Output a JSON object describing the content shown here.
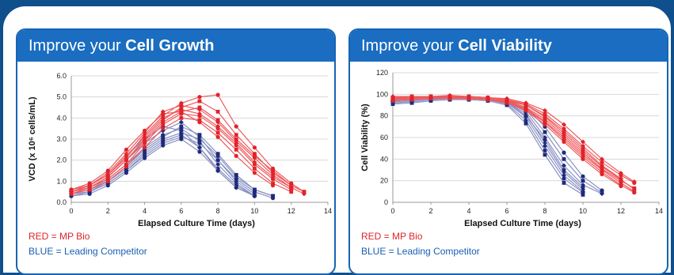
{
  "panels": [
    {
      "title_light": "Improve your ",
      "title_bold": "Cell Growth",
      "legend_red": "RED = MP Bio",
      "legend_blue": "BLUE = Leading Competitor"
    },
    {
      "title_light": "Improve your ",
      "title_bold": "Cell Viability",
      "legend_red": "RED = MP Bio",
      "legend_blue": "BLUE = Leading Competitor"
    }
  ],
  "colors": {
    "red": "#e0242a",
    "blue": "#1f2a7a",
    "frame": "#0f4f8c",
    "header": "#1a6dc0"
  },
  "chart_data": [
    {
      "type": "line",
      "xlabel": "Elapsed Culture Time (days)",
      "ylabel": "VCD (x 10⁶ cells/mL)",
      "xlim": [
        0,
        14
      ],
      "ylim": [
        0,
        6
      ],
      "xticks": [
        0,
        2,
        4,
        6,
        8,
        10,
        12,
        14
      ],
      "yticks": [
        "0.0",
        "1.0",
        "2.0",
        "3.0",
        "4.0",
        "5.0",
        "6.0"
      ],
      "grid": true,
      "series": [
        {
          "group": "red",
          "x": [
            0,
            1,
            2,
            3,
            4,
            5,
            6,
            7,
            8,
            9,
            10,
            11,
            12,
            12.7
          ],
          "y": [
            0.6,
            0.8,
            1.3,
            2.1,
            3.2,
            4.1,
            4.7,
            5.0,
            5.1,
            3.6,
            2.6,
            1.6,
            0.9,
            0.5
          ]
        },
        {
          "group": "red",
          "x": [
            0,
            1,
            2,
            3,
            4,
            5,
            6,
            7,
            8,
            9,
            10,
            11,
            12,
            12.7
          ],
          "y": [
            0.5,
            0.7,
            1.2,
            2.0,
            3.0,
            3.9,
            4.5,
            4.8,
            4.3,
            3.2,
            2.3,
            1.4,
            0.8,
            0.5
          ]
        },
        {
          "group": "red",
          "x": [
            0,
            1,
            2,
            3,
            4,
            5,
            6,
            7,
            8,
            9,
            10,
            11,
            12,
            12.7
          ],
          "y": [
            0.6,
            0.8,
            1.4,
            2.3,
            3.3,
            4.3,
            4.6,
            4.4,
            3.8,
            2.9,
            2.1,
            1.3,
            0.7,
            0.4
          ]
        },
        {
          "group": "red",
          "x": [
            0,
            1,
            2,
            3,
            4,
            5,
            6,
            7,
            8,
            9,
            10,
            11,
            12
          ],
          "y": [
            0.5,
            0.7,
            1.1,
            1.8,
            2.8,
            3.7,
            4.2,
            4.1,
            3.5,
            2.7,
            1.8,
            1.1,
            0.6
          ]
        },
        {
          "group": "red",
          "x": [
            0,
            1,
            2,
            3,
            4,
            5,
            6,
            7,
            8,
            9,
            10,
            11,
            12
          ],
          "y": [
            0.4,
            0.6,
            1.0,
            1.7,
            2.6,
            3.5,
            4.0,
            3.9,
            3.3,
            2.5,
            1.6,
            0.9,
            0.5
          ]
        },
        {
          "group": "red",
          "x": [
            0,
            1,
            2,
            3,
            4,
            5,
            6,
            7,
            8,
            9,
            10,
            11,
            12
          ],
          "y": [
            0.5,
            0.8,
            1.3,
            2.2,
            3.1,
            4.0,
            4.4,
            4.2,
            3.6,
            2.8,
            1.9,
            1.2,
            0.7
          ]
        },
        {
          "group": "red",
          "x": [
            0,
            1,
            2,
            3,
            4,
            5,
            6,
            7,
            8,
            9,
            10,
            11
          ],
          "y": [
            0.6,
            0.9,
            1.5,
            2.5,
            3.4,
            4.2,
            4.3,
            3.8,
            3.1,
            2.2,
            1.4,
            0.8
          ]
        },
        {
          "group": "red",
          "x": [
            0,
            1,
            2,
            3,
            4,
            5,
            6,
            7,
            8,
            9,
            10,
            11,
            12
          ],
          "y": [
            0.4,
            0.7,
            1.2,
            2.0,
            2.9,
            3.8,
            4.3,
            4.5,
            3.9,
            3.0,
            2.2,
            1.5,
            0.8
          ]
        },
        {
          "group": "blue",
          "x": [
            0,
            1,
            2,
            3,
            4,
            5,
            6,
            7,
            8,
            9,
            10
          ],
          "y": [
            0.4,
            0.6,
            1.1,
            1.8,
            2.6,
            3.2,
            3.5,
            2.9,
            1.8,
            0.9,
            0.3
          ]
        },
        {
          "group": "blue",
          "x": [
            0,
            1,
            2,
            3,
            4,
            5,
            6,
            7,
            8,
            9,
            10
          ],
          "y": [
            0.3,
            0.5,
            0.9,
            1.5,
            2.3,
            2.9,
            3.2,
            2.6,
            1.6,
            0.8,
            0.3
          ]
        },
        {
          "group": "blue",
          "x": [
            0,
            1,
            2,
            3,
            4,
            5,
            6,
            7,
            8,
            9,
            10,
            11
          ],
          "y": [
            0.4,
            0.6,
            1.0,
            1.6,
            2.4,
            3.0,
            3.3,
            3.0,
            2.2,
            1.2,
            0.6,
            0.3
          ]
        },
        {
          "group": "blue",
          "x": [
            0,
            1,
            2,
            3,
            4,
            5,
            6,
            7,
            8,
            9,
            10
          ],
          "y": [
            0.5,
            0.7,
            1.2,
            2.0,
            2.8,
            3.4,
            3.8,
            3.1,
            2.0,
            1.0,
            0.4
          ]
        },
        {
          "group": "blue",
          "x": [
            0,
            1,
            2,
            3,
            4,
            5,
            6,
            7,
            8,
            9,
            10
          ],
          "y": [
            0.3,
            0.4,
            0.8,
            1.4,
            2.1,
            2.7,
            3.0,
            2.4,
            1.5,
            0.7,
            0.3
          ]
        },
        {
          "group": "blue",
          "x": [
            0,
            1,
            2,
            3,
            4,
            5,
            6,
            7,
            8,
            9,
            10,
            11
          ],
          "y": [
            0.4,
            0.5,
            1.0,
            1.7,
            2.5,
            3.1,
            3.6,
            3.2,
            2.3,
            1.3,
            0.6,
            0.3
          ]
        },
        {
          "group": "blue",
          "x": [
            0,
            1,
            2,
            3,
            4,
            5,
            6,
            7,
            8,
            9,
            10
          ],
          "y": [
            0.5,
            0.8,
            1.3,
            2.2,
            3.0,
            3.6,
            3.4,
            2.6,
            1.5,
            0.7,
            0.3
          ]
        },
        {
          "group": "blue",
          "x": [
            0,
            1,
            2,
            3,
            4,
            5,
            6,
            7,
            8,
            9,
            10,
            11
          ],
          "y": [
            0.3,
            0.5,
            0.9,
            1.5,
            2.2,
            2.8,
            3.1,
            2.8,
            2.0,
            1.1,
            0.5,
            0.2
          ]
        }
      ]
    },
    {
      "type": "line",
      "xlabel": "Elapsed Culture Time (days)",
      "ylabel": "Cell Viability (%)",
      "xlim": [
        0,
        14
      ],
      "ylim": [
        0,
        120
      ],
      "xticks": [
        0,
        2,
        4,
        6,
        8,
        10,
        12,
        14
      ],
      "yticks": [
        "0",
        "20",
        "40",
        "60",
        "80",
        "100",
        "120"
      ],
      "grid": true,
      "series": [
        {
          "group": "red",
          "x": [
            0,
            1,
            2,
            3,
            4,
            5,
            6,
            7,
            8,
            9,
            10,
            11,
            12,
            12.7
          ],
          "y": [
            97,
            97,
            98,
            98,
            98,
            97,
            95,
            91,
            82,
            68,
            52,
            37,
            25,
            18
          ]
        },
        {
          "group": "red",
          "x": [
            0,
            1,
            2,
            3,
            4,
            5,
            6,
            7,
            8,
            9,
            10,
            11,
            12,
            12.7
          ],
          "y": [
            96,
            97,
            97,
            97,
            97,
            96,
            94,
            88,
            77,
            62,
            46,
            31,
            20,
            13
          ]
        },
        {
          "group": "red",
          "x": [
            0,
            1,
            2,
            3,
            4,
            5,
            6,
            7,
            8,
            9,
            10,
            11,
            12,
            12.7
          ],
          "y": [
            98,
            98,
            98,
            99,
            98,
            97,
            96,
            92,
            85,
            72,
            56,
            40,
            27,
            19
          ]
        },
        {
          "group": "red",
          "x": [
            0,
            1,
            2,
            3,
            4,
            5,
            6,
            7,
            8,
            9,
            10,
            11,
            12
          ],
          "y": [
            95,
            96,
            97,
            97,
            96,
            95,
            92,
            85,
            72,
            56,
            40,
            26,
            15
          ]
        },
        {
          "group": "red",
          "x": [
            0,
            1,
            2,
            3,
            4,
            5,
            6,
            7,
            8,
            9,
            10,
            11,
            12,
            12.7
          ],
          "y": [
            97,
            97,
            98,
            98,
            97,
            96,
            93,
            87,
            75,
            60,
            44,
            30,
            18,
            10
          ]
        },
        {
          "group": "red",
          "x": [
            0,
            1,
            2,
            3,
            4,
            5,
            6,
            7,
            8,
            9,
            10,
            11,
            12
          ],
          "y": [
            96,
            96,
            97,
            97,
            97,
            96,
            94,
            90,
            80,
            66,
            50,
            34,
            22
          ]
        },
        {
          "group": "red",
          "x": [
            0,
            1,
            2,
            3,
            4,
            5,
            6,
            7,
            8,
            9,
            10,
            11,
            12,
            12.7
          ],
          "y": [
            94,
            95,
            96,
            96,
            96,
            95,
            93,
            86,
            74,
            58,
            42,
            28,
            16,
            9
          ]
        },
        {
          "group": "red",
          "x": [
            0,
            1,
            2,
            3,
            4,
            5,
            6,
            7,
            8,
            9,
            10,
            11,
            12,
            12.7
          ],
          "y": [
            97,
            98,
            98,
            98,
            98,
            97,
            95,
            90,
            79,
            64,
            48,
            33,
            21,
            12
          ]
        },
        {
          "group": "blue",
          "x": [
            0,
            1,
            2,
            3,
            4,
            5,
            6,
            7,
            8,
            9,
            10
          ],
          "y": [
            94,
            95,
            96,
            97,
            97,
            96,
            93,
            82,
            55,
            28,
            12
          ]
        },
        {
          "group": "blue",
          "x": [
            0,
            1,
            2,
            3,
            4,
            5,
            6,
            7,
            8,
            9,
            10
          ],
          "y": [
            92,
            93,
            95,
            96,
            96,
            95,
            91,
            76,
            48,
            22,
            9
          ]
        },
        {
          "group": "blue",
          "x": [
            0,
            1,
            2,
            3,
            4,
            5,
            6,
            7,
            8,
            9,
            10,
            11
          ],
          "y": [
            95,
            96,
            97,
            97,
            97,
            96,
            94,
            86,
            65,
            40,
            20,
            9
          ]
        },
        {
          "group": "blue",
          "x": [
            0,
            1,
            2,
            3,
            4,
            5,
            6,
            7,
            8,
            9,
            10
          ],
          "y": [
            93,
            94,
            96,
            96,
            96,
            95,
            92,
            79,
            52,
            25,
            10
          ]
        },
        {
          "group": "blue",
          "x": [
            0,
            1,
            2,
            3,
            4,
            5,
            6,
            7,
            8,
            9,
            10,
            11
          ],
          "y": [
            96,
            96,
            97,
            98,
            97,
            96,
            94,
            88,
            70,
            46,
            24,
            11
          ]
        },
        {
          "group": "blue",
          "x": [
            0,
            1,
            2,
            3,
            4,
            5,
            6,
            7,
            8,
            9,
            10
          ],
          "y": [
            91,
            92,
            94,
            95,
            95,
            94,
            90,
            73,
            44,
            18,
            7
          ]
        },
        {
          "group": "blue",
          "x": [
            0,
            1,
            2,
            3,
            4,
            5,
            6,
            7,
            8,
            9,
            10,
            11
          ],
          "y": [
            94,
            95,
            96,
            97,
            97,
            96,
            93,
            84,
            60,
            34,
            16,
            8
          ]
        },
        {
          "group": "blue",
          "x": [
            0,
            1,
            2,
            3,
            4,
            5,
            6,
            7,
            8,
            9,
            10
          ],
          "y": [
            95,
            96,
            97,
            97,
            96,
            95,
            93,
            80,
            58,
            30,
            14
          ]
        }
      ]
    }
  ]
}
